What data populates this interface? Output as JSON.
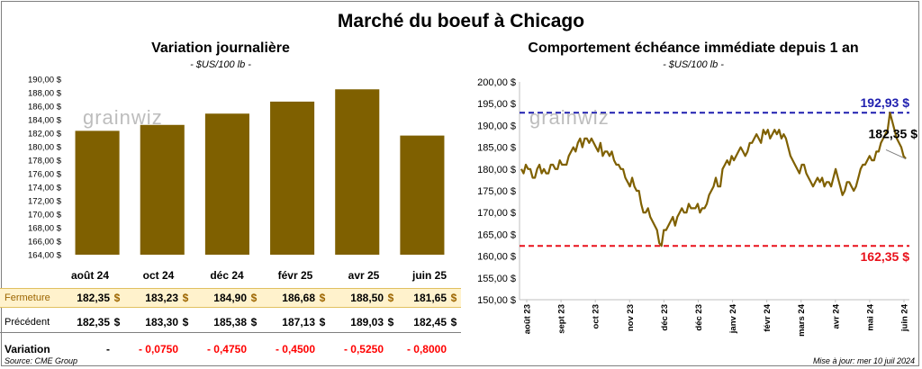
{
  "main_title": "Marché du boeuf à Chicago",
  "watermark": "grainwiz",
  "left": {
    "title": "Variation journalière",
    "unit": "- $US/100 lb -",
    "chart_data": {
      "type": "bar",
      "categories": [
        "août 24",
        "oct 24",
        "déc 24",
        "févr 25",
        "avr 25",
        "juin 25"
      ],
      "values": [
        182.35,
        183.23,
        184.9,
        186.68,
        188.5,
        181.65
      ],
      "ylim": [
        164,
        190
      ],
      "y_ticks": [
        "164,00 $",
        "166,00 $",
        "168,00 $",
        "170,00 $",
        "172,00 $",
        "174,00 $",
        "176,00 $",
        "178,00 $",
        "180,00 $",
        "182,00 $",
        "184,00 $",
        "186,00 $",
        "188,00 $",
        "190,00 $"
      ],
      "bar_color": "#7f6000"
    },
    "table": {
      "headers": [
        "août 24",
        "oct 24",
        "déc 24",
        "févr 25",
        "avr 25",
        "juin 25"
      ],
      "rows": [
        {
          "label": "Fermeture",
          "values": [
            "182,35",
            "183,23",
            "184,90",
            "186,68",
            "188,50",
            "181,65"
          ],
          "currency": "$"
        },
        {
          "label": "Précédent",
          "values": [
            "182,35",
            "183,30",
            "185,38",
            "187,13",
            "189,03",
            "182,45"
          ],
          "currency": "$"
        },
        {
          "label": "Variation",
          "values": [
            "-",
            "- 0,0750",
            "- 0,4750",
            "- 0,4500",
            "- 0,5250",
            "- 0,8000"
          ]
        }
      ]
    }
  },
  "right": {
    "title": "Comportement  échéance immédiate depuis 1 an",
    "unit": "- $US/100 lb -",
    "chart_data": {
      "type": "line",
      "ylim": [
        150,
        200
      ],
      "y_ticks": [
        "150,00 $",
        "155,00 $",
        "160,00 $",
        "165,00 $",
        "170,00 $",
        "175,00 $",
        "180,00 $",
        "185,00 $",
        "190,00 $",
        "195,00 $",
        "200,00 $"
      ],
      "x_ticks": [
        "août 23",
        "sept 23",
        "oct 23",
        "nov 23",
        "déc 23",
        "déc 23",
        "janv 24",
        "févr 24",
        "mars 24",
        "avr 24",
        "mai 24",
        "juin 24"
      ],
      "series": [
        {
          "values": [
            180,
            179,
            181,
            180,
            180,
            178,
            178,
            180,
            181,
            179,
            180,
            179,
            179,
            181,
            181,
            180,
            180,
            182,
            181,
            181,
            181,
            183,
            184,
            185,
            184,
            186,
            187,
            185,
            187,
            187,
            186,
            187,
            186,
            185,
            184,
            186,
            183,
            184,
            184,
            183,
            184,
            182,
            181,
            181,
            180,
            180,
            178,
            177,
            176,
            178,
            176,
            175,
            175,
            172,
            170,
            170,
            171,
            169,
            168,
            167,
            166,
            163,
            162.35,
            166,
            166,
            167,
            168,
            169,
            167,
            169,
            170,
            171,
            170,
            170,
            172,
            171,
            171,
            171,
            172,
            170,
            171,
            171,
            172,
            174,
            175,
            176,
            178,
            176,
            176,
            180,
            181,
            182,
            181,
            183,
            182,
            183,
            184,
            185,
            184,
            183,
            184,
            186,
            186,
            187,
            188,
            187,
            186,
            189,
            188,
            189,
            187,
            188,
            189,
            188,
            189,
            187,
            188,
            187,
            185,
            183,
            182,
            181,
            180,
            179,
            181,
            181,
            179,
            178,
            177,
            176,
            177,
            178,
            177,
            178,
            176,
            177,
            177,
            176,
            178,
            180,
            178,
            176,
            174,
            175,
            177,
            177,
            176,
            175,
            176,
            178,
            180,
            181,
            181,
            182,
            183,
            182,
            182,
            184,
            184,
            186,
            187,
            188,
            189,
            192.93,
            191,
            189,
            187,
            186,
            185,
            183,
            182.35
          ],
          "color": "#7f6000"
        }
      ],
      "reference_lines": [
        {
          "value": 192.93,
          "label": "192,93 $",
          "color": "#1f1faf"
        },
        {
          "value": 162.35,
          "label": "162,35 $",
          "color": "#e8111b"
        }
      ],
      "last_label": "182,35 $"
    }
  },
  "footer": {
    "source": "Source: CME Group",
    "update": "Mise à jour: mer 10 juil 2024"
  }
}
